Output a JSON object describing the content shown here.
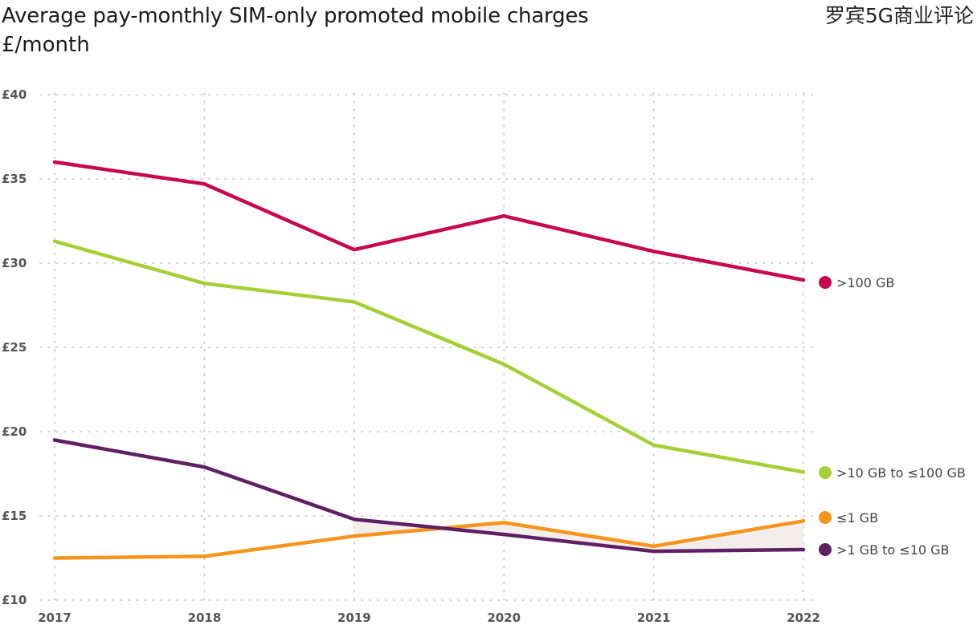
{
  "header": {
    "title": "Average pay-monthly SIM-only promoted mobile charges",
    "subtitle": "£/month",
    "watermark": "罗宾5G商业评论"
  },
  "chart_data": {
    "type": "line",
    "title": "Average pay-monthly SIM-only promoted mobile charges",
    "subtitle": "£/month",
    "xlabel": "",
    "ylabel": "£/month",
    "x": [
      "2017",
      "2018",
      "2019",
      "2020",
      "2021",
      "2022"
    ],
    "ylim": [
      10,
      40
    ],
    "yticks": [
      40,
      35,
      30,
      25,
      20,
      15,
      10
    ],
    "ytick_labels": [
      "£40",
      "£35",
      "£30",
      "£25",
      "£20",
      "£15",
      "£10"
    ],
    "grid": true,
    "legend_placement": "right (end-of-line labels)",
    "series": [
      {
        "name": ">100 GB",
        "color": "#c8084e",
        "values": [
          36.0,
          34.7,
          30.8,
          32.8,
          30.7,
          29.0
        ]
      },
      {
        "name": ">10 GB to ≤100 GB",
        "color": "#a5cf35",
        "values": [
          31.3,
          28.8,
          27.7,
          24.0,
          19.2,
          17.6
        ]
      },
      {
        "name": "≤1 GB",
        "color": "#f7941d",
        "values": [
          12.5,
          12.6,
          13.8,
          14.6,
          13.2,
          14.7
        ]
      },
      {
        "name": ">1 GB to ≤10 GB",
        "color": "#5e2063",
        "values": [
          19.5,
          17.9,
          14.8,
          13.9,
          12.9,
          13.0
        ]
      }
    ]
  }
}
